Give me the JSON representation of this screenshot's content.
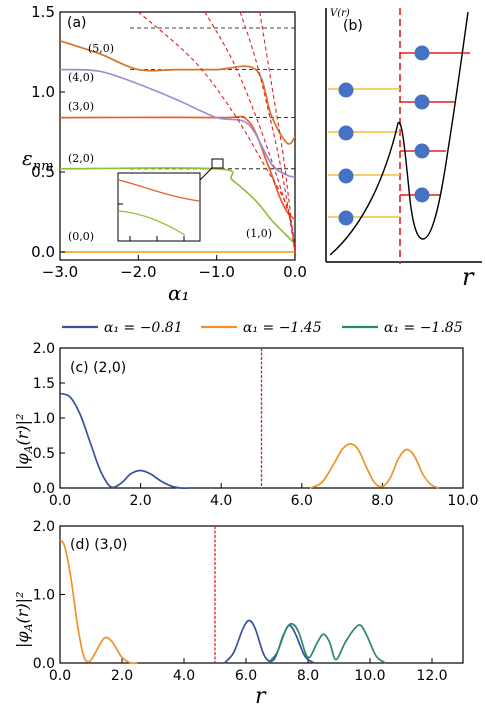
{
  "chart_data": [
    {
      "panel": "(a)",
      "type": "line",
      "xlabel": "α₁",
      "ylabel": "ε_nm",
      "xlim": [
        -3.0,
        0.0
      ],
      "ylim": [
        -0.05,
        1.5
      ],
      "xticks": [
        "−3.0",
        "−2.0",
        "−1.0",
        "0.0"
      ],
      "yticks": [
        "0.0",
        "0.5",
        "1.0",
        "1.5"
      ],
      "asymptotes": [
        0.52,
        0.84,
        1.14,
        1.4
      ],
      "level_labels": [
        "(0,0)",
        "(2,0)",
        "(3,0)",
        "(4,0)",
        "(5,0)",
        "(1,0)"
      ],
      "colors": {
        "n0": "#f5a623",
        "n2": "#8fbf3f",
        "n3": "#e8602c",
        "n4": "#9d8fd0",
        "n5": "#d3752c",
        "dashed_red": "#e02020"
      },
      "series": [
        {
          "label": "(0,0)",
          "color": "#f5a623",
          "x": [
            -3.0,
            -1.0,
            -0.2,
            0.0
          ],
          "y": [
            0.0,
            0.0,
            0.0,
            0.0
          ]
        },
        {
          "label": "(2,0)",
          "color": "#8fbf3f",
          "x": [
            -3.0,
            -1.0,
            -0.8,
            -0.5,
            -0.3,
            -0.1,
            0.0
          ],
          "y": [
            0.52,
            0.52,
            0.45,
            0.32,
            0.2,
            0.1,
            0.05
          ]
        },
        {
          "label": "(3,0)",
          "color": "#e8602c",
          "x": [
            -3.0,
            -1.0,
            -0.6,
            -0.35,
            -0.2,
            -0.1,
            0.0
          ],
          "y": [
            0.84,
            0.84,
            0.82,
            0.55,
            0.35,
            0.25,
            0.2
          ]
        },
        {
          "label": "(4,0)",
          "color": "#9d8fd0",
          "x": [
            -3.0,
            -2.5,
            -2.0,
            -1.5,
            -1.0,
            -0.6,
            -0.3,
            -0.1,
            0.0
          ],
          "y": [
            1.14,
            1.13,
            1.05,
            0.95,
            0.84,
            0.8,
            0.55,
            0.48,
            0.47
          ]
        },
        {
          "label": "(5,0)",
          "color": "#d3752c",
          "x": [
            -3.0,
            -2.5,
            -2.0,
            -1.5,
            -1.0,
            -0.5,
            -0.3,
            -0.1,
            0.0
          ],
          "y": [
            1.32,
            1.24,
            1.14,
            1.14,
            1.14,
            1.14,
            0.85,
            0.68,
            0.72
          ]
        },
        {
          "label": "dashed1",
          "color": "#e02020",
          "dashed": true,
          "x": [
            -2.0,
            -1.3,
            -0.8,
            -0.4,
            -0.1,
            0.0
          ],
          "y": [
            1.5,
            1.2,
            0.88,
            0.55,
            0.28,
            0.0
          ]
        },
        {
          "label": "dashed2",
          "color": "#e02020",
          "dashed": true,
          "x": [
            -1.15,
            -0.8,
            -0.5,
            -0.25,
            -0.05,
            0.0
          ],
          "y": [
            1.5,
            1.2,
            0.85,
            0.5,
            0.18,
            0.0
          ]
        },
        {
          "label": "dashed3",
          "color": "#e02020",
          "dashed": true,
          "x": [
            -0.7,
            -0.5,
            -0.3,
            -0.15,
            0.0
          ],
          "y": [
            1.5,
            1.2,
            0.8,
            0.45,
            0.0
          ]
        },
        {
          "label": "dashed4",
          "color": "#e02020",
          "dashed": true,
          "x": [
            -0.45,
            -0.3,
            -0.15,
            0.0
          ],
          "y": [
            1.5,
            1.05,
            0.6,
            0.0
          ]
        }
      ]
    },
    {
      "panel": "(b)",
      "type": "line",
      "xlabel": "r",
      "ylabel": "V(r)"
    },
    {
      "panel": "(c) (2,0)",
      "type": "line",
      "xlabel": "",
      "ylabel": "|φ_A(r)|²",
      "xlim": [
        0.0,
        10.0
      ],
      "ylim": [
        0.0,
        2.0
      ],
      "xticks": [
        "0.0",
        "2.0",
        "4.0",
        "6.0",
        "8.0",
        "10.0"
      ],
      "yticks": [
        "0.0",
        "0.5",
        "1.0",
        "1.5",
        "2.0"
      ],
      "divider_x": 5.0,
      "series": [
        {
          "name": "α₁ = −0.81",
          "color": "#3a4fa0",
          "x": [
            0.0,
            0.25,
            0.5,
            0.75,
            1.0,
            1.25,
            1.5,
            1.75,
            2.0,
            2.25,
            2.5,
            2.75,
            3.0,
            3.2
          ],
          "y": [
            1.35,
            1.3,
            1.05,
            0.65,
            0.25,
            0.02,
            0.06,
            0.2,
            0.25,
            0.2,
            0.1,
            0.03,
            0.0,
            0.0
          ]
        },
        {
          "name": "α₁ = −1.45",
          "color": "#f0922b",
          "x": [
            6.2,
            6.5,
            6.8,
            7.0,
            7.2,
            7.4,
            7.6,
            7.8,
            8.0,
            8.2,
            8.4,
            8.6,
            8.8,
            9.0,
            9.2,
            9.4
          ],
          "y": [
            0.0,
            0.08,
            0.35,
            0.55,
            0.63,
            0.55,
            0.3,
            0.08,
            0.02,
            0.15,
            0.42,
            0.55,
            0.45,
            0.2,
            0.05,
            0.0
          ]
        }
      ]
    },
    {
      "panel": "(d) (3,0)",
      "type": "line",
      "xlabel": "r",
      "ylabel": "|φ_A(r)|²",
      "xlim": [
        0.0,
        13.0
      ],
      "ylim": [
        0.0,
        2.0
      ],
      "xticks": [
        "0.0",
        "2.0",
        "4.0",
        "6.0",
        "8.0",
        "10.0",
        "12.0"
      ],
      "yticks": [
        "0.0",
        "1.0",
        "2.0"
      ],
      "divider_x": 5.0,
      "series": [
        {
          "name": "α₁ = −0.81",
          "color": "#3a4fa0",
          "x": [
            5.3,
            5.6,
            5.9,
            6.1,
            6.3,
            6.6,
            6.9,
            7.2,
            7.4,
            7.6,
            7.9,
            8.2
          ],
          "y": [
            0.0,
            0.15,
            0.5,
            0.62,
            0.5,
            0.1,
            0.05,
            0.4,
            0.55,
            0.42,
            0.1,
            0.0
          ]
        },
        {
          "name": "α₁ = −1.45",
          "color": "#f0922b",
          "x": [
            0.0,
            0.15,
            0.35,
            0.55,
            0.75,
            0.95,
            1.2,
            1.45,
            1.7,
            2.0,
            2.3,
            2.5
          ],
          "y": [
            1.8,
            1.7,
            1.25,
            0.6,
            0.12,
            0.02,
            0.2,
            0.37,
            0.3,
            0.08,
            0.0,
            0.0
          ]
        },
        {
          "name": "α₁ = −1.85",
          "color": "#2b8a5e",
          "x": [
            6.7,
            7.0,
            7.3,
            7.5,
            7.7,
            8.0,
            8.3,
            8.5,
            8.7,
            8.9,
            9.2,
            9.5,
            9.7,
            9.9,
            10.2,
            10.5
          ],
          "y": [
            0.0,
            0.15,
            0.5,
            0.57,
            0.45,
            0.08,
            0.3,
            0.42,
            0.3,
            0.05,
            0.3,
            0.5,
            0.55,
            0.4,
            0.1,
            0.0
          ]
        }
      ]
    }
  ],
  "legend": [
    {
      "label": "α₁ = −0.81",
      "color": "#3a4fa0"
    },
    {
      "label": "α₁ = −1.45",
      "color": "#f0922b"
    },
    {
      "label": "α₁ = −1.85",
      "color": "#2b8a5e"
    }
  ],
  "labels": {
    "a": "(a)",
    "b": "(b)",
    "c": "(c) (2,0)",
    "d": "(d) (3,0)",
    "a_xlabel": "α₁",
    "a_ylabel": "ε",
    "a_ylabel_sub": "nm",
    "b_ylabel": "V(r)",
    "b_xlabel": "r",
    "phi_ylabel": "|φ",
    "phi_ylabel_sub": "A",
    "phi_ylabel_rest": "(r)|²",
    "d_xlabel": "r"
  }
}
